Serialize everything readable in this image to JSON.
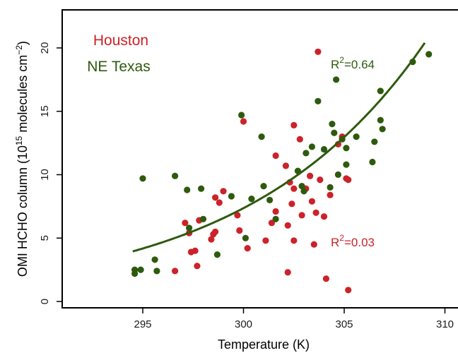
{
  "colors": {
    "houston": "#cc2229",
    "ne_texas": "#2e5a0e",
    "frame": "#000000"
  },
  "chart_data": {
    "type": "scatter",
    "title": "",
    "xlabel": "Temperature (K)",
    "ylabel_main": "OMI HCHO column (10",
    "ylabel_sup1": "15",
    "ylabel_mid": " molecules cm",
    "ylabel_sup2": "−2",
    "ylabel_end": ")",
    "xlim": [
      291.0,
      311.0
    ],
    "ylim": [
      -0.5,
      23.0
    ],
    "xticks": [
      295,
      300,
      305,
      310
    ],
    "yticks": [
      0,
      5,
      10,
      15,
      20
    ],
    "grid": false,
    "legend": {
      "placement": "top-left",
      "entries": [
        "Houston",
        "NE Texas"
      ]
    },
    "series": [
      {
        "name": "Houston",
        "color": "#cc2229",
        "r2_prefix": "R",
        "r2_sup": "2",
        "r2_suffix": "=0.03",
        "points": [
          [
            296.6,
            2.4
          ],
          [
            297.1,
            6.2
          ],
          [
            297.3,
            5.4
          ],
          [
            297.4,
            3.9
          ],
          [
            297.6,
            4.0
          ],
          [
            297.7,
            2.8
          ],
          [
            298.4,
            4.9
          ],
          [
            298.5,
            5.3
          ],
          [
            298.6,
            8.2
          ],
          [
            298.6,
            5.5
          ],
          [
            298.8,
            7.8
          ],
          [
            299.0,
            8.7
          ],
          [
            299.7,
            6.8
          ],
          [
            299.8,
            5.6
          ],
          [
            300.0,
            14.2
          ],
          [
            300.2,
            4.2
          ],
          [
            301.1,
            4.8
          ],
          [
            301.4,
            6.2
          ],
          [
            301.6,
            11.5
          ],
          [
            301.6,
            7.1
          ],
          [
            302.1,
            10.7
          ],
          [
            302.2,
            2.3
          ],
          [
            302.3,
            9.4
          ],
          [
            302.4,
            7.7
          ],
          [
            302.5,
            13.9
          ],
          [
            302.5,
            8.9
          ],
          [
            302.5,
            4.8
          ],
          [
            302.8,
            12.8
          ],
          [
            302.9,
            6.8
          ],
          [
            303.1,
            8.9
          ],
          [
            303.3,
            9.9
          ],
          [
            303.4,
            7.9
          ],
          [
            303.5,
            4.5
          ],
          [
            303.6,
            7.0
          ],
          [
            303.7,
            19.7
          ],
          [
            303.8,
            9.6
          ],
          [
            304.0,
            6.7
          ],
          [
            304.1,
            1.8
          ],
          [
            304.3,
            8.4
          ],
          [
            304.7,
            12.4
          ],
          [
            304.9,
            13.0
          ],
          [
            305.1,
            9.7
          ],
          [
            305.2,
            9.6
          ],
          [
            305.2,
            0.9
          ],
          [
            302.2,
            6.0
          ],
          [
            297.8,
            6.4
          ]
        ]
      },
      {
        "name": "NE Texas",
        "color": "#2e5a0e",
        "r2_prefix": "R",
        "r2_sup": "2",
        "r2_suffix": "=0.64",
        "fit_coeffs": [
          -0.7316,
          0.002494
        ],
        "fit_range": [
          294.5,
          309.0
        ],
        "points": [
          [
            294.6,
            2.2
          ],
          [
            294.6,
            2.5
          ],
          [
            294.9,
            2.5
          ],
          [
            295.0,
            9.7
          ],
          [
            295.6,
            3.3
          ],
          [
            295.7,
            2.4
          ],
          [
            296.6,
            9.9
          ],
          [
            297.2,
            8.8
          ],
          [
            297.3,
            5.8
          ],
          [
            297.9,
            8.9
          ],
          [
            298.0,
            6.5
          ],
          [
            298.7,
            3.7
          ],
          [
            299.4,
            8.3
          ],
          [
            299.9,
            14.7
          ],
          [
            300.1,
            5.0
          ],
          [
            300.4,
            8.1
          ],
          [
            300.9,
            13.0
          ],
          [
            301.0,
            9.1
          ],
          [
            301.3,
            8.0
          ],
          [
            301.6,
            6.5
          ],
          [
            302.7,
            10.3
          ],
          [
            302.9,
            9.1
          ],
          [
            303.0,
            8.7
          ],
          [
            303.1,
            11.7
          ],
          [
            303.4,
            12.2
          ],
          [
            303.7,
            15.8
          ],
          [
            304.0,
            12.0
          ],
          [
            304.3,
            9.0
          ],
          [
            304.4,
            14.0
          ],
          [
            304.5,
            13.3
          ],
          [
            304.6,
            17.5
          ],
          [
            304.7,
            10.0
          ],
          [
            304.9,
            12.8
          ],
          [
            305.1,
            12.1
          ],
          [
            305.1,
            10.8
          ],
          [
            305.6,
            13.0
          ],
          [
            306.4,
            11.0
          ],
          [
            306.5,
            12.6
          ],
          [
            306.8,
            16.6
          ],
          [
            306.8,
            14.3
          ],
          [
            306.9,
            13.6
          ],
          [
            308.4,
            18.9
          ],
          [
            309.2,
            19.5
          ]
        ]
      }
    ]
  }
}
